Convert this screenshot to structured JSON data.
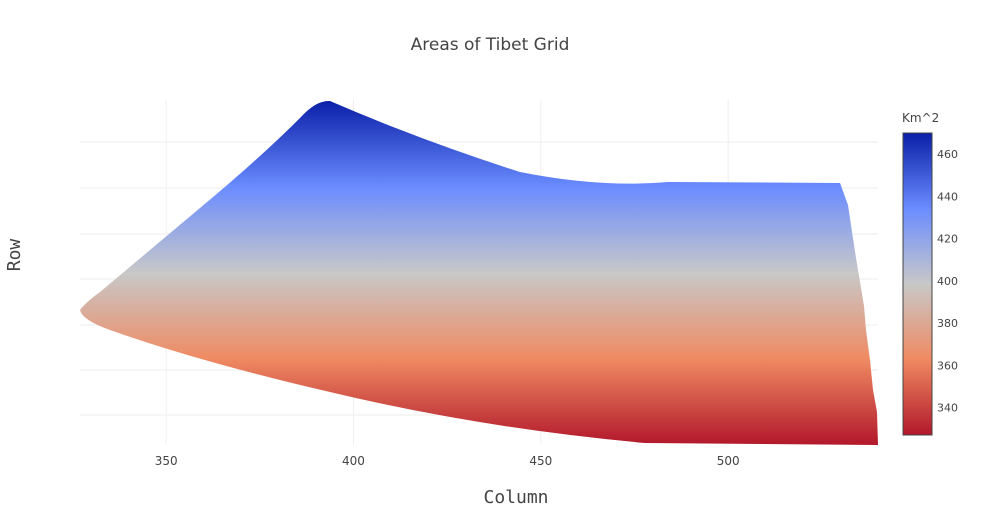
{
  "chart_data": {
    "type": "heatmap",
    "title": "Areas of Tibet Grid",
    "xlabel": "Column",
    "ylabel": "Row",
    "xlim": [
      327,
      540
    ],
    "x_ticks": [
      350,
      400,
      450,
      500
    ],
    "colorbar": {
      "title": "Km^2",
      "range": [
        327,
        470
      ],
      "ticks": [
        340,
        360,
        380,
        400,
        420,
        440,
        460
      ],
      "colorscale": [
        [
          0.0,
          "#b2182b"
        ],
        [
          0.25,
          "#ef8a62"
        ],
        [
          0.5,
          "#c8c8c8"
        ],
        [
          0.75,
          "#6a8cff"
        ],
        [
          1.0,
          "#0a1fa8"
        ]
      ]
    },
    "grid": true
  }
}
